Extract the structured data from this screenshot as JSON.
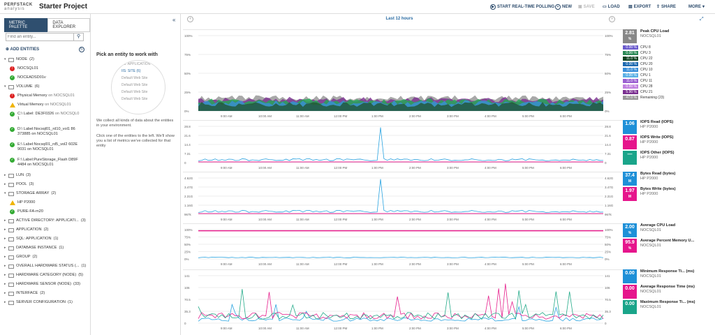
{
  "logo": {
    "line1": "PERFSTACK",
    "line2": "analysis"
  },
  "project_title": "Starter Project",
  "toolbar": {
    "polling": "START REAL-TIME POLLING",
    "new": "NEW",
    "save": "SAVE",
    "load": "LOAD",
    "export": "EXPORT",
    "share": "SHARE",
    "more": "MORE"
  },
  "tabs": [
    "METRIC PALETTE",
    "DATA EXPLORER"
  ],
  "search": {
    "placeholder": "Find an entity..."
  },
  "add_entities": "ADD ENTITIES",
  "tree": [
    {
      "type": "group",
      "label": "NODE",
      "count": "(2)"
    },
    {
      "type": "item",
      "status": "red",
      "label": "NOCSQL01"
    },
    {
      "type": "item",
      "status": "green",
      "label": "NOCEADSD01v"
    },
    {
      "type": "group",
      "label": "VOLUME",
      "count": "(6)"
    },
    {
      "type": "item",
      "status": "red",
      "label": "Physical Memory",
      "suffix": "on NOCSQL01"
    },
    {
      "type": "item",
      "status": "warn",
      "label": "Virtual Memory",
      "suffix": "on NOCSQL01"
    },
    {
      "type": "item2",
      "status": "green",
      "label": "C:\\ Label: DE3F0326",
      "suffix": "on NOCSQL0",
      "line2": "1"
    },
    {
      "type": "item2",
      "status": "green",
      "label": "D:\\ Label:Nocsql01_rd10_vol1 86",
      "suffix": "",
      "line2": "373885 on NOCSQL01"
    },
    {
      "type": "item2",
      "status": "green",
      "label": "E:\\ Label:Nocsql01_rd5_vol2 602E",
      "suffix": "",
      "line2": "9031 on NOCSQL01"
    },
    {
      "type": "item2",
      "status": "green",
      "label": "F:\\ Label:PureStorage_Flash D89F",
      "suffix": "",
      "line2": "4484 on NOCSQL01"
    },
    {
      "type": "group",
      "label": "LUN",
      "count": "(3)"
    },
    {
      "type": "group",
      "label": "POOL",
      "count": "(3)"
    },
    {
      "type": "group",
      "label": "STORAGE ARRAY",
      "count": "(2)"
    },
    {
      "type": "item",
      "status": "warn",
      "label": "HP P2000"
    },
    {
      "type": "item",
      "status": "green",
      "label": "PURE-FA-m20"
    },
    {
      "type": "group",
      "label": "ACTIVE DIRECTORY: APPLICATI...",
      "count": "(3)"
    },
    {
      "type": "group",
      "label": "APPLICATION",
      "count": "(2)"
    },
    {
      "type": "group",
      "label": "SQL: APPLICATION",
      "count": "(1)"
    },
    {
      "type": "group",
      "label": "DATABASE INSTANCE",
      "count": "(1)"
    },
    {
      "type": "group",
      "label": "GROUP",
      "count": "(2)"
    },
    {
      "type": "group",
      "label": "OVERALL HARDWARE STATUS (...",
      "count": "(1)"
    },
    {
      "type": "group",
      "label": "HARDWARE CATEGORY (NODE)",
      "count": "(5)"
    },
    {
      "type": "group",
      "label": "HARDWARE SENSOR (NODE)",
      "count": "(33)"
    },
    {
      "type": "group",
      "label": "INTERFACE",
      "count": "(2)"
    },
    {
      "type": "group",
      "label": "SERVER CONFIGURATION",
      "count": "(1)"
    }
  ],
  "palette": {
    "heading": "Pick an entity to work with",
    "wheel": [
      "IIS: APPLICATION",
      "IIS: SITE (6)",
      "Default Web Site",
      "Default Web Site",
      "Default Web Site",
      "Default Web Site"
    ],
    "p1": "We collect all kinds of data about the entities in your environment.",
    "p2": "Click one of the entities to the left. We'll show you a list of metrics we've collected for that entity"
  },
  "time_range": "Last 12 hours",
  "x_ticks": [
    "9:00 AM",
    "10:00 AM",
    "11:00 AM",
    "12:00 PM",
    "1:00 PM",
    "2:00 PM",
    "3:00 PM",
    "4:00 PM",
    "5:00 PM",
    "6:00 PM"
  ],
  "chart_data": [
    {
      "type": "area",
      "title": "",
      "ylabels": [
        "100%",
        "75%",
        "50%",
        "25%",
        "0%"
      ],
      "series": [
        {
          "name": "CPU 8",
          "color": "#aa88dd"
        },
        {
          "name": "CPU 3",
          "color": "#22aa55"
        },
        {
          "name": "CPU 22",
          "color": "#225533"
        }
      ]
    },
    {
      "type": "line",
      "ylabels": [
        "28.8",
        "21.6",
        "14.4",
        "7.31",
        "0"
      ],
      "ylim": [
        0,
        28.8
      ],
      "series": [
        {
          "name": "IOPS Read (IOPS)",
          "color": "#29a3e0",
          "values": [
            1.2,
            1.5,
            1.3,
            2.1,
            1.4,
            1.6,
            1.8,
            1.3,
            1.5,
            28.5,
            1.4,
            1.9,
            1.6,
            1.3,
            1.8,
            1.5,
            1.2,
            1.6,
            1.4,
            1.2
          ]
        }
      ]
    },
    {
      "type": "line",
      "ylabels": [
        "4.62G",
        "3.47G",
        "2.31G",
        "1.16G",
        "967k"
      ],
      "series": [
        {
          "name": "Bytes Read (bytes)",
          "color": "#29a3e0"
        }
      ]
    },
    {
      "type": "line",
      "ylabels": [
        "100%",
        "75%",
        "50%",
        "25%",
        "0%"
      ],
      "series": [
        {
          "name": "Average CPU Load",
          "color": "#29a3e0"
        },
        {
          "name": "Average Percent Memory U...",
          "color": "#e61e8c"
        }
      ]
    },
    {
      "type": "line",
      "ylabels": [
        "141",
        "106",
        "70.5",
        "35.3",
        "0"
      ],
      "series": [
        {
          "name": "Minimum Response Ti...",
          "color": "#29a3e0"
        },
        {
          "name": "Average Response Time",
          "color": "#e61e8c"
        },
        {
          "name": "Maximum Response Ti...",
          "color": "#22aa88"
        }
      ]
    }
  ],
  "legend_cpu": {
    "big": {
      "value": "2.81",
      "unit": "%",
      "label": "Peak CPU Load",
      "sub": "NOCSQL01",
      "color": "#888888"
    },
    "rows": [
      {
        "v": "0.00 %",
        "l": "CPU 8",
        "c": "#6a5acd"
      },
      {
        "v": "0.00 %",
        "l": "CPU 3",
        "c": "#2e8b57"
      },
      {
        "v": "11.0 %",
        "l": "CPU 22",
        "c": "#114422"
      },
      {
        "v": "0.00 %",
        "l": "CPU 20",
        "c": "#1e6ab0"
      },
      {
        "v": "11.0 %",
        "l": "CPU 10",
        "c": "#3a8fd9"
      },
      {
        "v": "0.00 %",
        "l": "CPU 1",
        "c": "#5bb0e5"
      },
      {
        "v": "11.0 %",
        "l": "CPU 11",
        "c": "#9a5fd0"
      },
      {
        "v": "0.00 %",
        "l": "CPU 28",
        "c": "#c080e0"
      },
      {
        "v": "5.90 %",
        "l": "CPU 21",
        "c": "#7a3090"
      },
      {
        "v": "47.0 %",
        "l": "Remaining (23)",
        "c": "#999999"
      }
    ]
  },
  "legend_blocks": [
    [
      {
        "value": "1.06",
        "unit": "",
        "label": "IOPS Read (IOPS)",
        "sub": "HP P2000",
        "color": "#1e90d8"
      },
      {
        "value": "0.87",
        "unit": "",
        "label": "IOPS Write (IOPS)",
        "sub": "HP P2000",
        "color": "#e6158c"
      },
      {
        "value": "—",
        "unit": "",
        "label": "IOPS Other (IOPS)",
        "sub": "HP P2000",
        "color": "#1aa58a"
      }
    ],
    [
      {
        "value": "37.4",
        "unit": "M",
        "label": "Bytes Read (bytes)",
        "sub": "HP P2000",
        "color": "#1e90d8"
      },
      {
        "value": "1.97",
        "unit": "M",
        "label": "Bytes Write (bytes)",
        "sub": "HP P2000",
        "color": "#e6158c"
      }
    ],
    [
      {
        "value": "2.00",
        "unit": "%",
        "label": "Average CPU Load",
        "sub": "NOCSQL01",
        "color": "#1e90d8"
      },
      {
        "value": "95.9",
        "unit": "%",
        "label": "Average Percent Memory U...",
        "sub": "NOCSQL01",
        "color": "#e6158c"
      }
    ],
    [
      {
        "value": "0.00",
        "unit": "",
        "label": "Minimum Response Ti... (ms)",
        "sub": "NOCSQL01",
        "color": "#1e90d8"
      },
      {
        "value": "0.00",
        "unit": "",
        "label": "Average Response Time (ms)",
        "sub": "NOCSQL01",
        "color": "#e6158c"
      },
      {
        "value": "0.00",
        "unit": "",
        "label": "Maximum Response Ti... (ms)",
        "sub": "NOCSQL01",
        "color": "#1aa58a"
      }
    ]
  ]
}
